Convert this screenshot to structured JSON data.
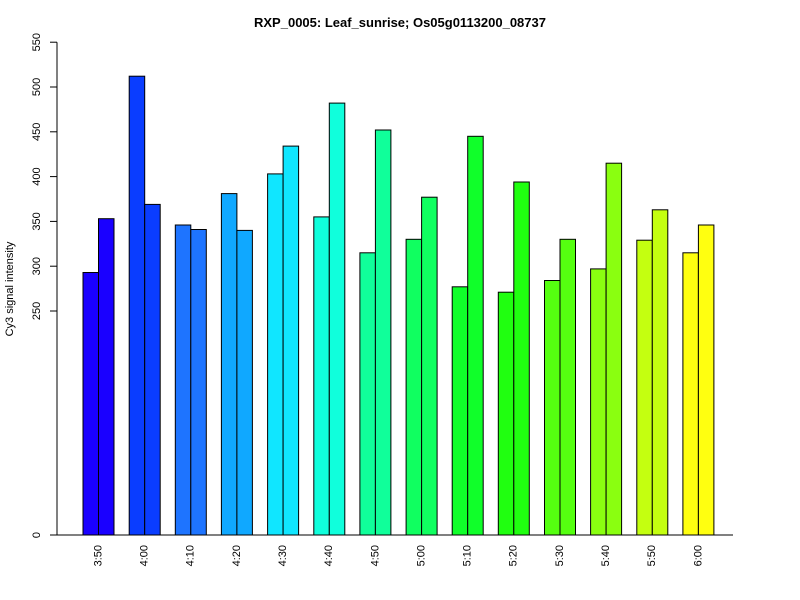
{
  "chart_data": {
    "type": "bar",
    "title": "RXP_0005: Leaf_sunrise; Os05g0113200_08737",
    "xlabel": "",
    "ylabel": "Cy3 signal intensity",
    "yticks": [
      0,
      250,
      300,
      350,
      400,
      450,
      500,
      550
    ],
    "categories": [
      "3:50",
      "4:00",
      "4:10",
      "4:20",
      "4:30",
      "4:40",
      "4:50",
      "5:00",
      "5:10",
      "5:20",
      "5:30",
      "5:40",
      "5:50",
      "6:00"
    ],
    "colors": [
      "#1a00ff",
      "#0a3dff",
      "#1e74ff",
      "#10a8ff",
      "#10e6ff",
      "#10ffdc",
      "#10ff9a",
      "#10ff60",
      "#10ff2a",
      "#20ff10",
      "#55ff10",
      "#8aff10",
      "#c4ff10",
      "#ffff10"
    ],
    "series": [
      {
        "values": [
          293,
          512,
          346,
          381,
          403,
          355,
          315,
          330,
          277,
          271,
          284,
          297,
          329,
          315
        ]
      },
      {
        "values": [
          353,
          369,
          341,
          340,
          434,
          482,
          452,
          377,
          445,
          394,
          330,
          415,
          363,
          346
        ]
      }
    ]
  }
}
